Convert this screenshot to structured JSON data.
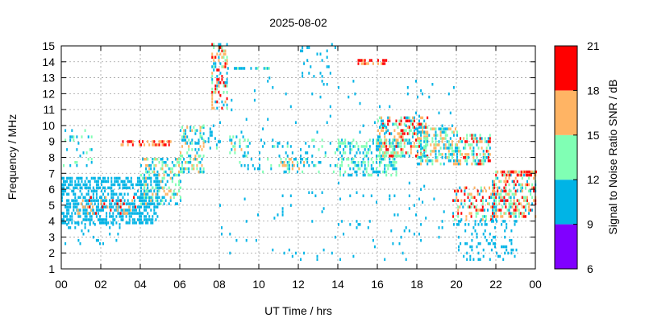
{
  "chart_data": {
    "type": "heatmap",
    "title": "2025-08-02",
    "xlabel": "UT Time / hrs",
    "ylabel": "Frequency / MHz",
    "colorbar_label": "Signal to Noise Ratio SNR / dB",
    "xlim": [
      0,
      24
    ],
    "ylim": [
      1,
      15
    ],
    "x_tick_labels": [
      "00",
      "02",
      "04",
      "06",
      "08",
      "10",
      "12",
      "14",
      "16",
      "18",
      "20",
      "22",
      "00"
    ],
    "y_tick_labels": [
      "1",
      "2",
      "3",
      "4",
      "5",
      "6",
      "7",
      "8",
      "9",
      "10",
      "11",
      "12",
      "13",
      "14",
      "15"
    ],
    "grid": true,
    "colorbar": {
      "ticks": [
        "6",
        "9",
        "12",
        "15",
        "18",
        "21"
      ],
      "bands": [
        {
          "min": 6,
          "max": 9,
          "color": "#8000ff"
        },
        {
          "min": 9,
          "max": 12,
          "color": "#00b4e6"
        },
        {
          "min": 12,
          "max": 15,
          "color": "#80ffb4"
        },
        {
          "min": 15,
          "max": 18,
          "color": "#ffb464"
        },
        {
          "min": 18,
          "max": 21,
          "color": "#ff0000"
        }
      ]
    },
    "regions": [
      {
        "t": [
          0.0,
          4.9
        ],
        "f": [
          3.8,
          6.8
        ],
        "snr": [
          9,
          12
        ],
        "density": 0.55
      },
      {
        "t": [
          0.8,
          3.8
        ],
        "f": [
          4.4,
          5.6
        ],
        "snr": [
          15,
          20
        ],
        "density": 0.25
      },
      {
        "t": [
          0.0,
          3.0
        ],
        "f": [
          2.5,
          3.8
        ],
        "snr": [
          9,
          12
        ],
        "density": 0.12
      },
      {
        "t": [
          0.0,
          1.5
        ],
        "f": [
          7.4,
          9.6
        ],
        "snr": [
          9,
          14
        ],
        "density": 0.15
      },
      {
        "t": [
          3.0,
          5.5
        ],
        "f": [
          8.7,
          8.9
        ],
        "snr": [
          15,
          21
        ],
        "density": 0.6
      },
      {
        "t": [
          4.0,
          6.0
        ],
        "f": [
          5.0,
          8.0
        ],
        "snr": [
          9,
          16
        ],
        "density": 0.45
      },
      {
        "t": [
          6.0,
          7.2
        ],
        "f": [
          7.0,
          9.8
        ],
        "snr": [
          9,
          18
        ],
        "density": 0.45
      },
      {
        "t": [
          7.0,
          8.0
        ],
        "f": [
          8.5,
          10.0
        ],
        "snr": [
          9,
          13
        ],
        "density": 0.15
      },
      {
        "t": [
          7.6,
          8.4
        ],
        "f": [
          11.0,
          15.0
        ],
        "snr": [
          9,
          21
        ],
        "density": 0.45
      },
      {
        "t": [
          8.4,
          10.5
        ],
        "f": [
          13.5,
          13.7
        ],
        "snr": [
          9,
          13
        ],
        "density": 0.6
      },
      {
        "t": [
          8.5,
          9.5
        ],
        "f": [
          8.0,
          9.3
        ],
        "snr": [
          9,
          16
        ],
        "density": 0.3
      },
      {
        "t": [
          9.0,
          14.0
        ],
        "f": [
          7.0,
          9.0
        ],
        "snr": [
          9,
          13
        ],
        "density": 0.12
      },
      {
        "t": [
          11.0,
          12.5
        ],
        "f": [
          7.0,
          8.0
        ],
        "snr": [
          9,
          18
        ],
        "density": 0.35
      },
      {
        "t": [
          12.0,
          14.0
        ],
        "f": [
          13.0,
          15.0
        ],
        "snr": [
          9,
          12
        ],
        "density": 0.1
      },
      {
        "t": [
          14.0,
          17.0
        ],
        "f": [
          6.8,
          9.0
        ],
        "snr": [
          9,
          15
        ],
        "density": 0.45
      },
      {
        "t": [
          15.0,
          16.5
        ],
        "f": [
          13.8,
          14.1
        ],
        "snr": [
          15,
          21
        ],
        "density": 0.55
      },
      {
        "t": [
          16.0,
          18.5
        ],
        "f": [
          8.0,
          10.4
        ],
        "snr": [
          9,
          21
        ],
        "density": 0.55
      },
      {
        "t": [
          18.0,
          20.0
        ],
        "f": [
          7.5,
          9.8
        ],
        "snr": [
          9,
          18
        ],
        "density": 0.5
      },
      {
        "t": [
          20.0,
          21.7
        ],
        "f": [
          7.5,
          9.3
        ],
        "snr": [
          9,
          21
        ],
        "density": 0.45
      },
      {
        "t": [
          19.8,
          22.0
        ],
        "f": [
          4.0,
          6.2
        ],
        "snr": [
          9,
          21
        ],
        "density": 0.35
      },
      {
        "t": [
          20.0,
          23.0
        ],
        "f": [
          1.5,
          4.0
        ],
        "snr": [
          9,
          12
        ],
        "density": 0.15
      },
      {
        "t": [
          21.8,
          24.0
        ],
        "f": [
          4.2,
          7.2
        ],
        "snr": [
          9,
          21
        ],
        "density": 0.5
      },
      {
        "t": [
          22.5,
          24.0
        ],
        "f": [
          6.8,
          7.1
        ],
        "snr": [
          15,
          21
        ],
        "density": 0.6
      },
      {
        "t": [
          14.0,
          20.0
        ],
        "f": [
          1.5,
          6.5
        ],
        "snr": [
          9,
          12
        ],
        "density": 0.03
      },
      {
        "t": [
          8.0,
          14.0
        ],
        "f": [
          1.5,
          6.0
        ],
        "snr": [
          9,
          12
        ],
        "density": 0.02
      },
      {
        "t": [
          8.0,
          20.0
        ],
        "f": [
          9.5,
          13.0
        ],
        "snr": [
          9,
          12
        ],
        "density": 0.02
      }
    ]
  }
}
